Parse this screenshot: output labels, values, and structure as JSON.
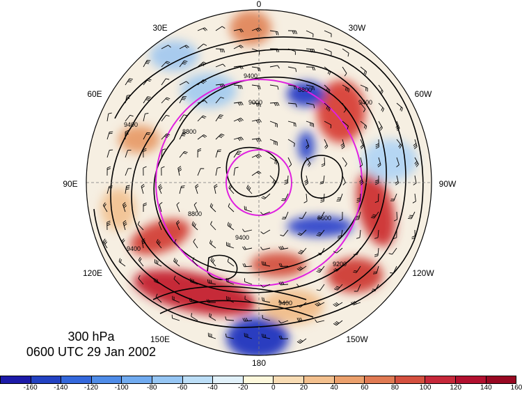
{
  "title": {
    "level": "300 hPa",
    "datetime": "0600 UTC 29 Jan 2002"
  },
  "longitude_labels": [
    "0",
    "30W",
    "60W",
    "90W",
    "120W",
    "150W",
    "180",
    "150E",
    "120E",
    "90E",
    "60E",
    "30E"
  ],
  "contour_labels": [
    "9400",
    "8800",
    "9400",
    "8800",
    "9400",
    "9000",
    "8600",
    "9200",
    "9400",
    "9400",
    "9400",
    "8800"
  ],
  "colorbar": {
    "labels": [
      "-160",
      "-140",
      "-120",
      "-100",
      "-80",
      "-60",
      "-40",
      "-20",
      "0",
      "20",
      "40",
      "60",
      "80",
      "100",
      "120",
      "140",
      "160"
    ],
    "colors": [
      "#1c1aa8",
      "#2342c2",
      "#3468dc",
      "#4f8ce8",
      "#71abf0",
      "#96c6f4",
      "#bcdef7",
      "#e1f1fa",
      "#fdf8dc",
      "#f8dcb4",
      "#f3c08e",
      "#eba06c",
      "#e07a53",
      "#d4503f",
      "#c6283a",
      "#b2102f",
      "#980822"
    ]
  },
  "circles_color": "#e020e0"
}
